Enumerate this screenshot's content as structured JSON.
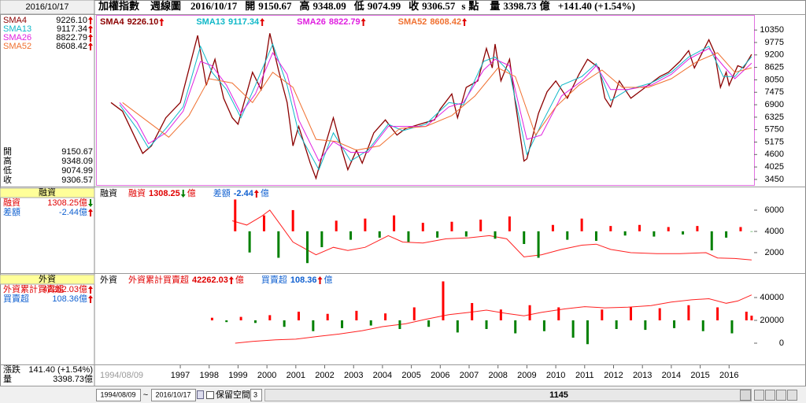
{
  "window": {
    "date": "2016/10/17",
    "instrument": "加權指數",
    "period": "週線圖"
  },
  "quote": {
    "open_label": "開",
    "open": "9150.67",
    "high_label": "高",
    "high": "9348.09",
    "low_label": "低",
    "low": "9074.99",
    "close_label": "收",
    "close": "9306.57",
    "s": "s",
    "unit": "點",
    "volume_label": "量",
    "volume": "3398.73",
    "volume_unit": "億",
    "change": "+141.40 (+1.54%)"
  },
  "sidebar": {
    "change_label": "漲跌",
    "change": "141.40 (+1.54%)"
  },
  "toolbar": {
    "start_date": "1994/08/09",
    "separator": "~",
    "end_date": "2016/10/17",
    "reserve_label": "保留空間",
    "reserve_value": "3",
    "position": "1145"
  },
  "chart_data": [
    {
      "type": "line",
      "xlim": [
        1994.11,
        2016.81
      ],
      "ylim": [
        3230,
        11010
      ],
      "yticks": [
        3450,
        4025,
        4600,
        5175,
        5750,
        6325,
        6900,
        7475,
        8050,
        8625,
        9200,
        9775,
        10350
      ],
      "series": [
        {
          "name": "SMA4",
          "color": "#8b0000",
          "legend_label": "9226.10",
          "arrow": "up",
          "x": [
            1994.6,
            1995.0,
            1995.5,
            1995.7,
            1996.0,
            1996.5,
            1997.0,
            1997.6,
            1997.9,
            1998.2,
            1998.5,
            1998.8,
            1999.0,
            1999.5,
            1999.8,
            2000.1,
            2000.4,
            2000.7,
            2000.9,
            2001.1,
            2001.5,
            2001.7,
            2001.9,
            2002.3,
            2002.6,
            2002.8,
            2003.1,
            2003.3,
            2003.7,
            2004.1,
            2004.5,
            2004.8,
            2005.3,
            2005.8,
            2006.0,
            2006.4,
            2006.6,
            2006.9,
            2007.3,
            2007.6,
            2007.8,
            2007.9,
            2008.1,
            2008.4,
            2008.6,
            2008.9,
            2009.0,
            2009.4,
            2009.7,
            2010.0,
            2010.4,
            2010.8,
            2011.1,
            2011.5,
            2011.7,
            2011.9,
            2012.2,
            2012.6,
            2012.9,
            2013.3,
            2013.6,
            2013.9,
            2014.3,
            2014.6,
            2014.8,
            2015.3,
            2015.5,
            2015.7,
            2015.9,
            2016.0,
            2016.3,
            2016.5,
            2016.78
          ],
          "values": [
            7000,
            6600,
            5200,
            4650,
            5000,
            6300,
            7000,
            10100,
            7800,
            9000,
            7200,
            6300,
            6000,
            8400,
            7600,
            10200,
            8500,
            7000,
            5000,
            5900,
            4200,
            3500,
            4500,
            6300,
            4800,
            3900,
            4800,
            4200,
            5600,
            6200,
            5500,
            5800,
            6000,
            6200,
            6700,
            7400,
            6300,
            7700,
            8000,
            9500,
            8600,
            9700,
            8000,
            9000,
            7000,
            4300,
            4400,
            6500,
            7500,
            8000,
            7200,
            8300,
            9000,
            8600,
            7200,
            6800,
            8000,
            7200,
            7500,
            7900,
            8200,
            8400,
            8900,
            9400,
            8600,
            9900,
            9300,
            7700,
            8400,
            7800,
            8700,
            8600,
            9226.1
          ]
        },
        {
          "name": "SMA13",
          "color": "#10b8c8",
          "legend_label": "9117.34",
          "arrow": "up",
          "x": [
            1994.9,
            1995.5,
            1995.9,
            1996.5,
            1997.1,
            1997.7,
            1998.1,
            1998.6,
            1999.1,
            1999.6,
            2000.2,
            2000.7,
            2001.1,
            2001.8,
            2002.3,
            2002.9,
            2003.5,
            2004.2,
            2004.7,
            2005.5,
            2006.3,
            2006.8,
            2007.5,
            2007.9,
            2008.4,
            2009.0,
            2009.5,
            2010.2,
            2010.9,
            2011.4,
            2011.9,
            2012.5,
            2013.3,
            2014.0,
            2014.6,
            2015.3,
            2015.8,
            2016.2,
            2016.78
          ],
          "values": [
            6900,
            5800,
            4900,
            5800,
            6800,
            9600,
            8400,
            7600,
            6300,
            7800,
            9700,
            7800,
            5600,
            3900,
            5600,
            4300,
            4800,
            6000,
            5700,
            6000,
            7000,
            6900,
            8900,
            9100,
            8400,
            4600,
            6000,
            7800,
            8200,
            8800,
            7100,
            7600,
            7900,
            8400,
            9100,
            9600,
            8200,
            8200,
            9117.34
          ]
        },
        {
          "name": "SMA26",
          "color": "#e020e0",
          "legend_label": "8822.79",
          "arrow": "up",
          "x": [
            1994.9,
            1995.5,
            1995.9,
            1996.5,
            1997.1,
            1997.7,
            1998.1,
            1998.6,
            1999.1,
            1999.6,
            2000.2,
            2000.7,
            2001.1,
            2001.8,
            2002.3,
            2002.9,
            2003.5,
            2004.2,
            2004.7,
            2005.5,
            2006.3,
            2006.8,
            2007.5,
            2007.9,
            2008.4,
            2009.0,
            2009.5,
            2010.2,
            2010.9,
            2011.4,
            2011.9,
            2012.5,
            2013.3,
            2014.0,
            2014.6,
            2015.3,
            2015.8,
            2016.2,
            2016.78
          ],
          "values": [
            7000,
            6100,
            5100,
            5600,
            6600,
            8900,
            8700,
            7800,
            6500,
            7400,
            9300,
            8300,
            6200,
            4300,
            5200,
            4700,
            4700,
            5900,
            5900,
            5900,
            6800,
            7000,
            8500,
            9000,
            8700,
            5300,
            5500,
            7300,
            8000,
            8700,
            7600,
            7600,
            7800,
            8300,
            9000,
            9500,
            8700,
            8100,
            8822.79
          ]
        },
        {
          "name": "SMA52",
          "color": "#f07030",
          "legend_label": "8608.42",
          "arrow": "up",
          "x": [
            1995.0,
            1995.8,
            1996.6,
            1997.3,
            1998.0,
            1998.8,
            1999.5,
            2000.2,
            2000.9,
            2001.7,
            2002.4,
            2003.1,
            2003.9,
            2004.6,
            2005.5,
            2006.4,
            2007.2,
            2008.0,
            2008.6,
            2009.3,
            2010.0,
            2010.8,
            2011.6,
            2012.3,
            2013.2,
            2014.0,
            2014.9,
            2015.6,
            2016.2,
            2016.78
          ],
          "values": [
            7000,
            6200,
            5400,
            6400,
            8100,
            7900,
            7000,
            8400,
            7700,
            5300,
            5200,
            4800,
            5000,
            5800,
            5900,
            6400,
            7300,
            8600,
            8200,
            5500,
            6800,
            7800,
            8500,
            7700,
            7700,
            8100,
            8900,
            9300,
            8400,
            8608.42
          ]
        }
      ]
    },
    {
      "type": "combo",
      "title": "融資",
      "xlim": [
        1994.11,
        2016.81
      ],
      "ylim": [
        220,
        8000
      ],
      "yticks": [
        2000,
        4000,
        6000
      ],
      "y2lim": [
        -380,
        400
      ],
      "series": [
        {
          "name": "融資",
          "type": "line",
          "color": "#ff2020",
          "label_color": "#e00000",
          "legend_label": "1308.25",
          "unit": "億",
          "arrow": "down",
          "x": [
            1998.8,
            1999.3,
            1999.8,
            2000.1,
            2000.5,
            2000.9,
            2001.3,
            2001.7,
            2002.3,
            2002.8,
            2003.4,
            2004.2,
            2004.7,
            2005.4,
            2006.2,
            2007.0,
            2007.7,
            2008.3,
            2008.9,
            2009.5,
            2010.2,
            2010.9,
            2011.4,
            2011.9,
            2012.6,
            2013.5,
            2014.3,
            2015.2,
            2015.6,
            2016.2,
            2016.78
          ],
          "values": [
            5000,
            4600,
            5400,
            6000,
            4500,
            3000,
            2400,
            1800,
            2500,
            2200,
            2500,
            3600,
            3000,
            2900,
            3300,
            3400,
            3600,
            3300,
            1600,
            1800,
            2300,
            2700,
            2800,
            2300,
            2000,
            1900,
            1900,
            2000,
            1500,
            1450,
            1308.25
          ]
        },
        {
          "name": "差額",
          "type": "bar",
          "axis": "y2",
          "color": "#ff0000",
          "negative_color": "#008000",
          "label_color": "#1060d0",
          "legend_label": "-2.44",
          "unit": "億",
          "arrow": "up",
          "x": [
            1998.9,
            1999.4,
            1999.9,
            2000.4,
            2000.9,
            2001.4,
            2001.9,
            2002.4,
            2002.9,
            2003.4,
            2003.9,
            2004.4,
            2004.9,
            2005.4,
            2005.9,
            2006.4,
            2006.9,
            2007.4,
            2007.9,
            2008.4,
            2008.9,
            2009.4,
            2009.9,
            2010.4,
            2010.9,
            2011.4,
            2011.9,
            2012.4,
            2012.9,
            2013.4,
            2013.9,
            2014.4,
            2014.9,
            2015.4,
            2015.9,
            2016.4,
            2016.78
          ],
          "values": [
            300,
            -200,
            150,
            -250,
            200,
            -300,
            -150,
            100,
            -80,
            120,
            -60,
            150,
            -100,
            80,
            -60,
            90,
            -50,
            110,
            -70,
            140,
            -120,
            -250,
            60,
            -80,
            120,
            -90,
            50,
            -40,
            60,
            -50,
            40,
            -30,
            50,
            -180,
            -60,
            40,
            -2.44
          ]
        }
      ]
    },
    {
      "type": "combo",
      "title": "外資",
      "xlim": [
        1994.11,
        2016.81
      ],
      "ylim": [
        -17930,
        59310
      ],
      "yticks": [
        0,
        20000,
        40000
      ],
      "y2lim": [
        -1000,
        1036
      ],
      "xticks": [
        1997,
        1998,
        1999,
        2000,
        2001,
        2002,
        2003,
        2004,
        2005,
        2006,
        2007,
        2008,
        2009,
        2010,
        2011,
        2012,
        2013,
        2014,
        2015,
        2016
      ],
      "series": [
        {
          "name": "外資累計買賣超",
          "type": "line",
          "color": "#ff2020",
          "label_color": "#e00000",
          "legend_label": "42262.03",
          "unit": "億",
          "arrow": "up",
          "x": [
            1998.9,
            1999.5,
            2000.3,
            2001.0,
            2001.8,
            2002.5,
            2003.3,
            2004.0,
            2004.8,
            2005.5,
            2006.3,
            2007.0,
            2007.6,
            2008.3,
            2008.9,
            2009.5,
            2010.3,
            2011.0,
            2011.7,
            2012.5,
            2013.3,
            2014.0,
            2014.7,
            2015.3,
            2015.9,
            2016.3,
            2016.78
          ],
          "values": [
            0,
            1500,
            3000,
            3500,
            6000,
            8000,
            11000,
            14500,
            17000,
            21000,
            25000,
            27000,
            29000,
            26000,
            24000,
            27000,
            30000,
            32000,
            31000,
            31500,
            33000,
            36000,
            38000,
            39000,
            35000,
            37000,
            42262.03
          ]
        },
        {
          "name": "買賣超",
          "type": "bar",
          "axis": "y2",
          "color": "#ff0000",
          "negative_color": "#008000",
          "label_color": "#1060d0",
          "legend_label": "108.36",
          "unit": "億",
          "arrow": "up",
          "x": [
            1998.1,
            1998.6,
            1999.1,
            1999.6,
            2000.1,
            2000.6,
            2001.1,
            2001.6,
            2002.1,
            2002.6,
            2003.1,
            2003.6,
            2004.1,
            2004.6,
            2005.1,
            2005.6,
            2006.1,
            2006.6,
            2007.1,
            2007.6,
            2008.1,
            2008.6,
            2009.1,
            2009.6,
            2010.1,
            2010.6,
            2011.1,
            2011.6,
            2012.1,
            2012.6,
            2013.1,
            2013.6,
            2014.1,
            2014.6,
            2015.1,
            2015.6,
            2016.1,
            2016.6,
            2016.78
          ],
          "values": [
            60,
            -40,
            80,
            -60,
            120,
            -150,
            200,
            -250,
            150,
            -180,
            220,
            -120,
            160,
            -200,
            300,
            -150,
            900,
            -280,
            400,
            -200,
            250,
            -300,
            350,
            -250,
            300,
            -400,
            -550,
            250,
            -200,
            300,
            -220,
            280,
            -180,
            350,
            -250,
            300,
            -300,
            200,
            108.36
          ]
        }
      ]
    }
  ]
}
